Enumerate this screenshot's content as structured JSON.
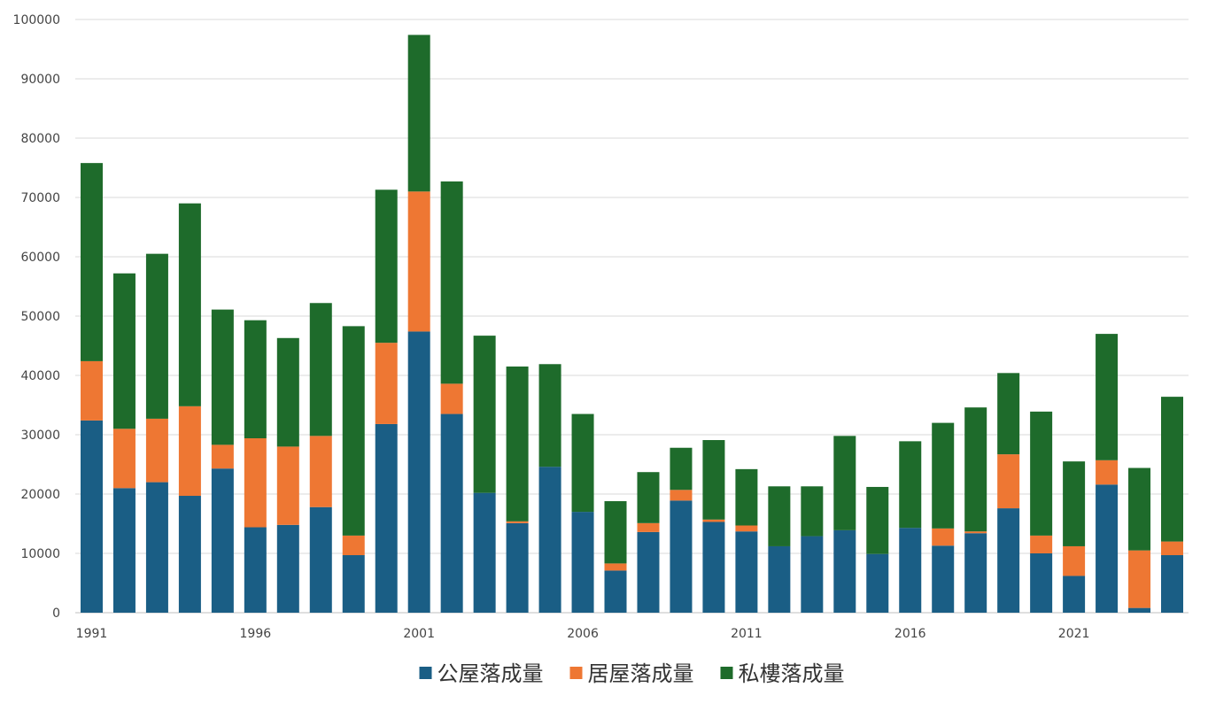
{
  "chart_data": {
    "type": "bar",
    "stacked": true,
    "title": "",
    "xlabel": "",
    "ylabel": "",
    "ylim": [
      0,
      100000
    ],
    "yticks": [
      0,
      10000,
      20000,
      30000,
      40000,
      50000,
      60000,
      70000,
      80000,
      90000,
      100000
    ],
    "grid": true,
    "legend_position": "bottom",
    "categories": [
      1991,
      1992,
      1993,
      1994,
      1995,
      1996,
      1997,
      1998,
      1999,
      2000,
      2001,
      2002,
      2003,
      2004,
      2005,
      2006,
      2007,
      2008,
      2009,
      2010,
      2011,
      2012,
      2013,
      2014,
      2015,
      2016,
      2017,
      2018,
      2019,
      2020,
      2021,
      2022,
      2023,
      2024
    ],
    "x_tick_labels": [
      "1991",
      "1996",
      "2001",
      "2006",
      "2011",
      "2016",
      "2021"
    ],
    "series": [
      {
        "name": "公屋落成量",
        "color": "#1a5e85",
        "values": [
          32400,
          21000,
          22000,
          19700,
          24300,
          14400,
          14800,
          17800,
          9700,
          31800,
          47400,
          33500,
          20200,
          15100,
          24600,
          17000,
          7100,
          13600,
          18900,
          15300,
          13700,
          11200,
          12900,
          13900,
          9900,
          14300,
          11300,
          13400,
          17600,
          10000,
          6200,
          21600,
          800,
          9700
        ]
      },
      {
        "name": "居屋落成量",
        "color": "#ee7733",
        "values": [
          10000,
          10000,
          10700,
          15100,
          4000,
          15000,
          13200,
          12000,
          3300,
          13700,
          23600,
          5100,
          0,
          300,
          0,
          0,
          1200,
          1500,
          1800,
          400,
          1000,
          0,
          0,
          0,
          0,
          0,
          2900,
          300,
          9100,
          3000,
          5000,
          4100,
          9700,
          2300
        ]
      },
      {
        "name": "私樓落成量",
        "color": "#1e6b2b",
        "values": [
          33400,
          26200,
          27800,
          34200,
          22800,
          19900,
          18300,
          22400,
          35300,
          25800,
          26400,
          34100,
          26500,
          26100,
          17300,
          16500,
          10500,
          8600,
          7100,
          13400,
          9500,
          10100,
          8400,
          15900,
          11300,
          14600,
          17800,
          20900,
          13700,
          20900,
          14300,
          21300,
          13900,
          24400
        ]
      }
    ]
  }
}
